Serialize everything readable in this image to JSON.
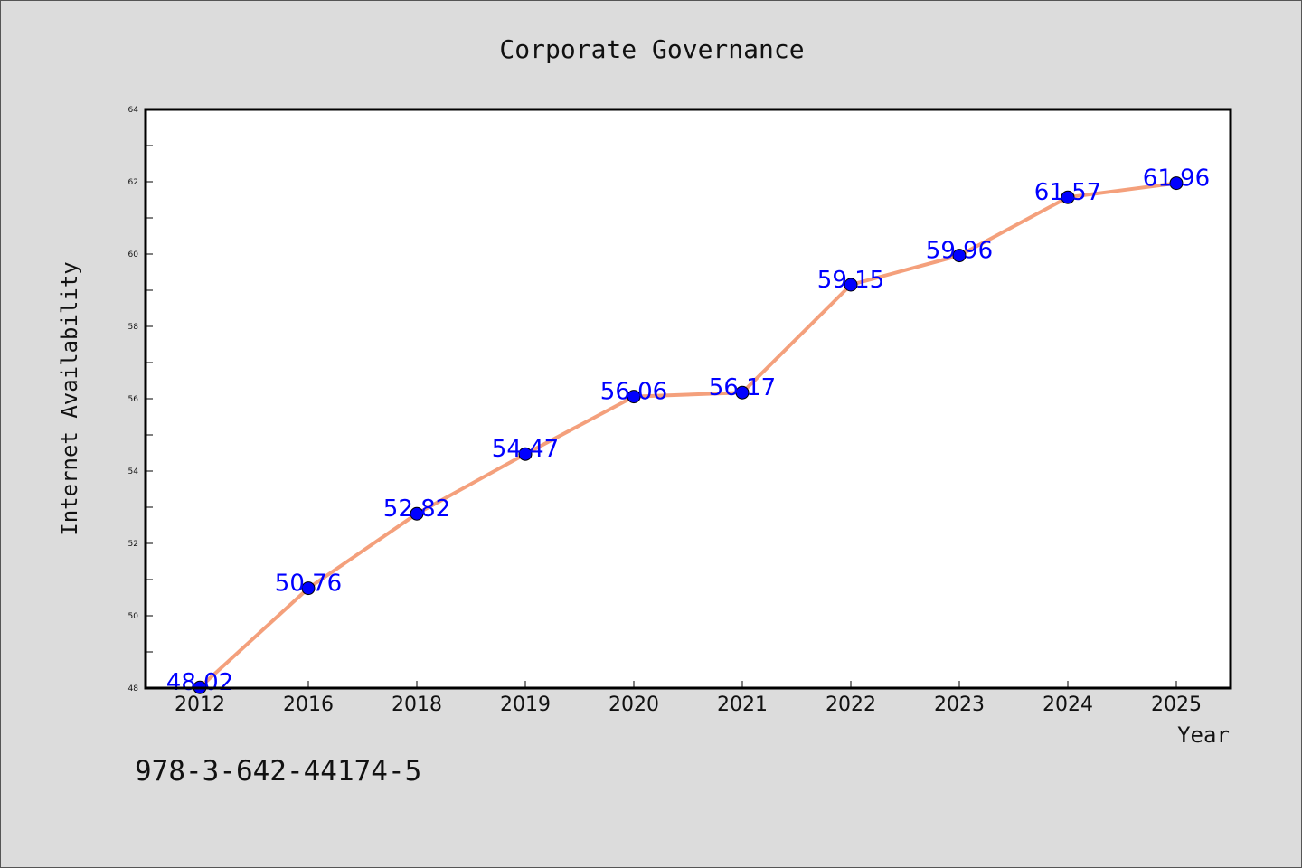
{
  "chart_data": {
    "type": "line",
    "title": "Corporate Governance",
    "xlabel": "Year",
    "ylabel": "Internet Availability",
    "categories": [
      "2012",
      "2016",
      "2018",
      "2019",
      "2020",
      "2021",
      "2022",
      "2023",
      "2024",
      "2025"
    ],
    "series": [
      {
        "values": [
          48.02,
          50.76,
          52.82,
          54.47,
          56.06,
          56.17,
          59.15,
          59.96,
          61.57,
          61.96
        ],
        "labels": [
          "48.02",
          "50.76",
          "52.82",
          "54.47",
          "56.06",
          "56.17",
          "59.15",
          "59.96",
          "61.57",
          "61.96"
        ],
        "line_color": "#f4a07c",
        "marker_color": "#0000ff"
      }
    ],
    "ylim": [
      48,
      64
    ],
    "y_ticks": [
      "48",
      "50",
      "52",
      "54",
      "56",
      "58",
      "60",
      "62",
      "64"
    ],
    "grid": false,
    "legend": "none"
  },
  "footnote": "978-3-642-44174-5"
}
